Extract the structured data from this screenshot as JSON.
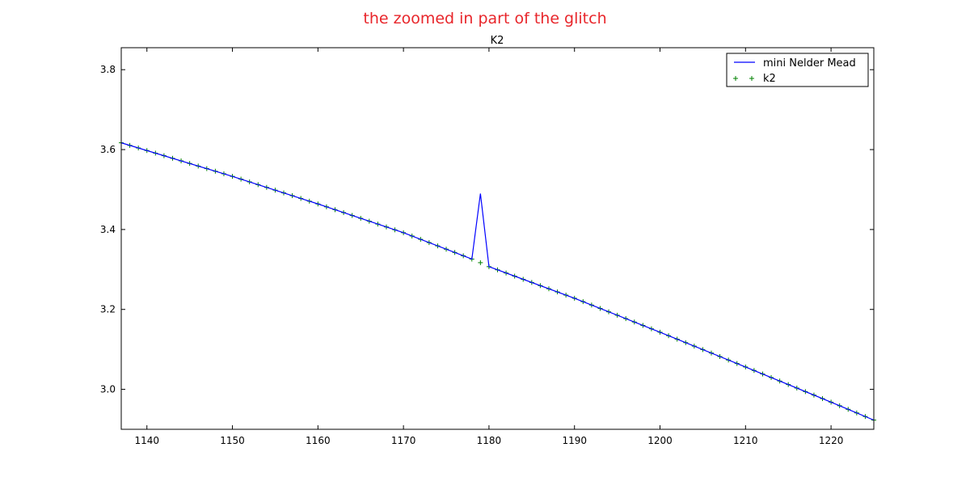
{
  "annotation": {
    "text": "the zoomed in part of the glitch",
    "color": "#e8262b"
  },
  "chart_data": {
    "type": "line",
    "title": "K2",
    "xlabel": "",
    "ylabel": "",
    "xlim": [
      1137,
      1225
    ],
    "ylim": [
      2.9,
      3.855
    ],
    "xticks": [
      1140,
      1150,
      1160,
      1170,
      1180,
      1190,
      1200,
      1210,
      1220
    ],
    "yticks": [
      3.0,
      3.2,
      3.4,
      3.6,
      3.8
    ],
    "xtick_labels": [
      "1140",
      "1150",
      "1160",
      "1170",
      "1180",
      "1190",
      "1200",
      "1210",
      "1220"
    ],
    "ytick_labels": [
      "3.0",
      "3.2",
      "3.4",
      "3.6",
      "3.8"
    ],
    "grid": false,
    "legend_position": "top-right",
    "series": [
      {
        "name": "mini Nelder Mead",
        "style": "line",
        "color": "#0000ff",
        "x": [
          1137,
          1150,
          1160,
          1170,
          1178,
          1179,
          1180,
          1190,
          1200,
          1210,
          1220,
          1225
        ],
        "y": [
          3.617,
          3.533,
          3.464,
          3.392,
          3.326,
          3.49,
          3.307,
          3.228,
          3.143,
          3.056,
          2.968,
          2.923
        ]
      },
      {
        "name": "k2",
        "style": "markers",
        "marker": "+",
        "color": "#008000",
        "x": [
          1137,
          1150,
          1160,
          1170,
          1178,
          1179,
          1180,
          1190,
          1200,
          1210,
          1220,
          1225
        ],
        "y": [
          3.617,
          3.533,
          3.464,
          3.392,
          3.326,
          3.317,
          3.307,
          3.228,
          3.143,
          3.056,
          2.968,
          2.923
        ]
      }
    ]
  }
}
